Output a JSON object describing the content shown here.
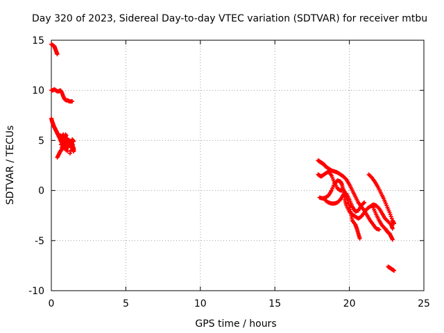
{
  "chart_data": {
    "type": "scatter",
    "title": "Day 320 of 2023, Sidereal Day-to-day VTEC variation (SDTVAR) for receiver mtbu",
    "xlabel": "GPS time / hours",
    "ylabel": "SDTVAR / TECUs",
    "xlim": [
      0,
      25
    ],
    "ylim": [
      -10,
      15
    ],
    "xticks": [
      "0",
      "5",
      "10",
      "15",
      "20",
      "25"
    ],
    "yticks": [
      "15",
      "10",
      "5",
      "0",
      "-5",
      "-10"
    ],
    "grid": true,
    "marker": "+",
    "marker_color": "#ff0000",
    "series": [
      {
        "segments": [
          [
            [
              0.0,
              14.6
            ],
            [
              0.1,
              14.5
            ],
            [
              0.2,
              14.4
            ],
            [
              0.25,
              14.2
            ],
            [
              0.3,
              14.0
            ],
            [
              0.35,
              13.8
            ],
            [
              0.4,
              13.6
            ]
          ],
          [
            [
              0.0,
              10.0
            ],
            [
              0.1,
              10.0
            ],
            [
              0.2,
              10.1
            ],
            [
              0.3,
              10.0
            ],
            [
              0.4,
              9.9
            ],
            [
              0.5,
              9.9
            ],
            [
              0.6,
              10.0
            ],
            [
              0.7,
              9.8
            ],
            [
              0.8,
              9.4
            ],
            [
              0.9,
              9.1
            ],
            [
              1.0,
              9.0
            ],
            [
              1.1,
              9.0
            ],
            [
              1.2,
              8.9
            ],
            [
              1.3,
              8.9
            ],
            [
              1.4,
              8.9
            ]
          ],
          [
            [
              0.0,
              7.2
            ],
            [
              0.05,
              6.9
            ],
            [
              0.1,
              6.7
            ],
            [
              0.15,
              6.5
            ],
            [
              0.2,
              6.3
            ],
            [
              0.25,
              6.2
            ],
            [
              0.3,
              6.0
            ],
            [
              0.35,
              5.9
            ],
            [
              0.4,
              5.7
            ],
            [
              0.45,
              5.6
            ],
            [
              0.5,
              5.4
            ],
            [
              0.55,
              5.3
            ],
            [
              0.6,
              5.1
            ],
            [
              0.65,
              4.9
            ],
            [
              0.7,
              4.8
            ],
            [
              0.75,
              4.6
            ],
            [
              0.8,
              4.5
            ],
            [
              0.85,
              4.3
            ]
          ],
          [
            [
              0.4,
              3.3
            ],
            [
              0.5,
              3.6
            ],
            [
              0.6,
              3.9
            ],
            [
              0.7,
              4.1
            ],
            [
              0.8,
              4.4
            ],
            [
              0.9,
              4.7
            ],
            [
              1.0,
              4.9
            ],
            [
              1.1,
              5.1
            ],
            [
              1.2,
              5.0
            ],
            [
              1.3,
              4.8
            ],
            [
              1.4,
              4.6
            ],
            [
              1.5,
              4.2
            ],
            [
              1.5,
              3.9
            ],
            [
              1.4,
              4.2
            ]
          ],
          [
            [
              0.6,
              5.5
            ],
            [
              0.7,
              5.3
            ],
            [
              0.8,
              5.6
            ],
            [
              0.9,
              5.1
            ],
            [
              1.0,
              5.5
            ],
            [
              0.7,
              4.3
            ],
            [
              0.8,
              4.9
            ],
            [
              0.9,
              4.4
            ],
            [
              1.0,
              4.0
            ],
            [
              1.1,
              4.5
            ],
            [
              1.2,
              4.8
            ],
            [
              1.3,
              4.3
            ],
            [
              1.4,
              5.1
            ],
            [
              1.5,
              4.9
            ],
            [
              1.25,
              3.7
            ],
            [
              0.65,
              4.6
            ],
            [
              0.95,
              5.6
            ]
          ],
          [
            [
              17.9,
              3.0
            ],
            [
              18.0,
              2.9
            ],
            [
              18.1,
              2.8
            ],
            [
              18.2,
              2.7
            ],
            [
              18.3,
              2.6
            ],
            [
              18.4,
              2.4
            ],
            [
              18.6,
              2.2
            ],
            [
              18.8,
              2.0
            ],
            [
              19.0,
              1.9
            ],
            [
              19.2,
              1.8
            ],
            [
              19.4,
              1.6
            ],
            [
              19.6,
              1.4
            ],
            [
              19.8,
              1.1
            ],
            [
              20.0,
              0.6
            ],
            [
              20.2,
              0.0
            ],
            [
              20.4,
              -0.6
            ],
            [
              20.6,
              -1.2
            ],
            [
              20.8,
              -1.6
            ],
            [
              21.0,
              -2.0
            ],
            [
              21.2,
              -2.5
            ],
            [
              21.4,
              -3.0
            ],
            [
              21.6,
              -3.4
            ],
            [
              21.8,
              -3.8
            ],
            [
              22.0,
              -3.9
            ]
          ],
          [
            [
              17.9,
              1.6
            ],
            [
              18.0,
              1.5
            ],
            [
              18.1,
              1.4
            ],
            [
              18.2,
              1.5
            ],
            [
              18.4,
              1.7
            ],
            [
              18.6,
              1.9
            ],
            [
              18.8,
              1.5
            ],
            [
              19.0,
              0.8
            ],
            [
              19.2,
              0.2
            ],
            [
              19.4,
              0.0
            ],
            [
              19.6,
              0.1
            ],
            [
              19.8,
              -0.6
            ],
            [
              20.0,
              -1.5
            ],
            [
              20.1,
              -2.3
            ],
            [
              20.2,
              -3.0
            ],
            [
              20.4,
              -3.4
            ],
            [
              20.5,
              -3.8
            ],
            [
              20.6,
              -4.3
            ],
            [
              20.7,
              -4.8
            ]
          ],
          [
            [
              18.0,
              -0.7
            ],
            [
              18.2,
              -0.8
            ],
            [
              18.4,
              -0.7
            ],
            [
              18.6,
              -0.5
            ],
            [
              18.8,
              0.0
            ],
            [
              19.0,
              0.7
            ],
            [
              19.2,
              1.0
            ],
            [
              19.4,
              0.9
            ],
            [
              19.5,
              0.6
            ],
            [
              19.6,
              0.0
            ],
            [
              19.7,
              -0.9
            ],
            [
              19.8,
              -1.5
            ],
            [
              20.0,
              -2.1
            ],
            [
              20.2,
              -2.4
            ],
            [
              20.4,
              -2.6
            ],
            [
              20.6,
              -2.8
            ],
            [
              20.8,
              -2.6
            ],
            [
              21.0,
              -2.2
            ],
            [
              21.2,
              -1.8
            ],
            [
              21.4,
              -1.6
            ],
            [
              21.6,
              -1.4
            ],
            [
              21.8,
              -1.5
            ],
            [
              22.0,
              -1.8
            ],
            [
              22.2,
              -2.3
            ],
            [
              22.4,
              -2.8
            ],
            [
              22.6,
              -3.1
            ],
            [
              22.8,
              -3.4
            ],
            [
              22.9,
              -3.8
            ]
          ],
          [
            [
              18.4,
              -1.0
            ],
            [
              18.6,
              -1.2
            ],
            [
              18.8,
              -1.3
            ],
            [
              19.0,
              -1.3
            ],
            [
              19.2,
              -1.2
            ],
            [
              19.4,
              -0.9
            ],
            [
              19.6,
              -0.4
            ],
            [
              19.8,
              -0.3
            ],
            [
              20.0,
              -0.9
            ],
            [
              20.2,
              -1.6
            ],
            [
              20.4,
              -2.1
            ],
            [
              20.6,
              -2.0
            ],
            [
              20.8,
              -1.5
            ],
            [
              21.0,
              -1.2
            ]
          ],
          [
            [
              21.3,
              1.6
            ],
            [
              21.5,
              1.3
            ],
            [
              21.7,
              0.9
            ],
            [
              21.9,
              0.4
            ],
            [
              22.1,
              -0.2
            ],
            [
              22.3,
              -0.8
            ],
            [
              22.5,
              -1.5
            ],
            [
              22.7,
              -2.2
            ],
            [
              22.9,
              -3.0
            ],
            [
              23.0,
              -3.3
            ]
          ],
          [
            [
              21.6,
              -1.7
            ],
            [
              21.8,
              -2.4
            ],
            [
              22.0,
              -3.0
            ],
            [
              22.2,
              -3.5
            ],
            [
              22.4,
              -3.8
            ],
            [
              22.5,
              -4.0
            ],
            [
              22.6,
              -4.2
            ],
            [
              22.7,
              -4.3
            ],
            [
              22.8,
              -4.6
            ],
            [
              22.9,
              -4.9
            ]
          ],
          [
            [
              22.6,
              -7.6
            ],
            [
              22.7,
              -7.7
            ],
            [
              22.8,
              -7.8
            ],
            [
              22.9,
              -7.9
            ],
            [
              23.0,
              -8.0
            ]
          ]
        ]
      }
    ]
  }
}
